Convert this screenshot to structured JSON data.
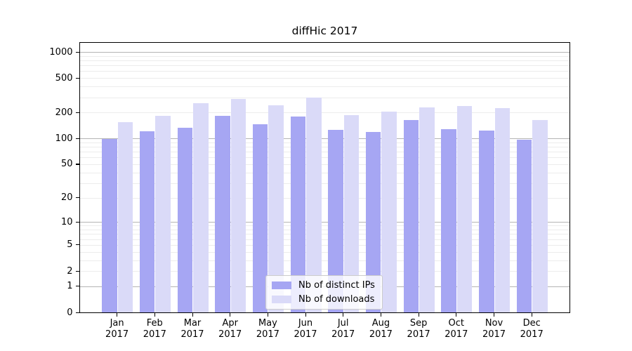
{
  "chart_data": {
    "type": "bar",
    "title": "diffHic 2017",
    "categories": [
      "Jan 2017",
      "Feb 2017",
      "Mar 2017",
      "Apr 2017",
      "May 2017",
      "Jun 2017",
      "Jul 2017",
      "Aug 2017",
      "Sep 2017",
      "Oct 2017",
      "Nov 2017",
      "Dec 2017"
    ],
    "series": [
      {
        "name": "Nb of distinct IPs",
        "color": "#a6a6f3",
        "values": [
          98,
          122,
          134,
          182,
          145,
          181,
          126,
          119,
          163,
          128,
          123,
          96
        ]
      },
      {
        "name": "Nb of downloads",
        "color": "#dadaf8",
        "values": [
          154,
          183,
          258,
          287,
          243,
          297,
          187,
          204,
          228,
          239,
          223,
          163
        ]
      }
    ],
    "y_scale": "log10(1+y)",
    "y_tick_values": [
      0,
      1,
      2,
      5,
      10,
      20,
      50,
      100,
      200,
      500,
      1000
    ],
    "y_tick_labels": [
      "0",
      "1",
      "2",
      "5",
      "10",
      "20",
      "50",
      "100",
      "200",
      "500",
      "1000"
    ],
    "y_major_gridlines": [
      1,
      10,
      100,
      1000
    ],
    "y_minor_gridlines": [
      2,
      3,
      4,
      5,
      6,
      7,
      8,
      9,
      20,
      30,
      40,
      50,
      60,
      70,
      80,
      90,
      200,
      300,
      400,
      500,
      600,
      700,
      800,
      900
    ],
    "ylim": [
      0,
      1276
    ],
    "grid": "horizontal major+minor",
    "legend_position": "lower center",
    "colors": {
      "major_grid": "#b4b4b4",
      "minor_grid": "#ececec",
      "axis": "#000000",
      "background": "#ffffff"
    }
  }
}
